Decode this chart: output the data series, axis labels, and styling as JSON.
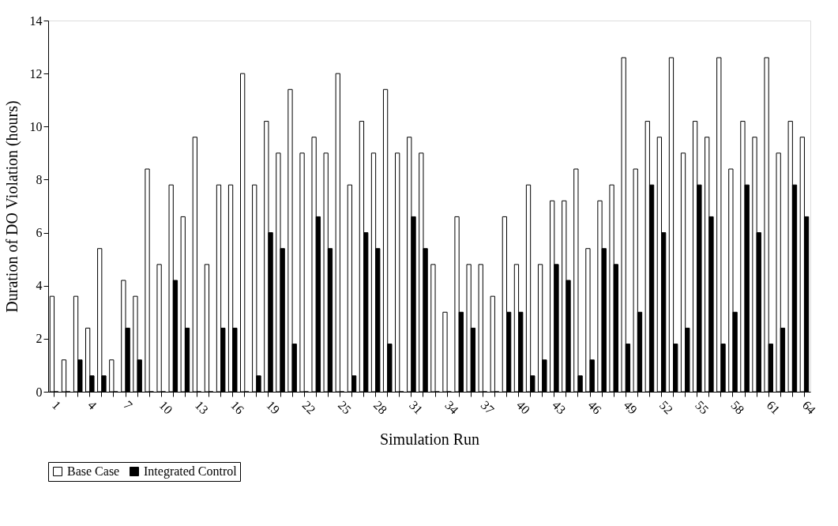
{
  "chart_data": {
    "type": "bar",
    "xlabel": "Simulation Run",
    "ylabel": "Duration of DO Violation (hours)",
    "categories": [
      "1",
      null,
      null,
      "4",
      null,
      null,
      "7",
      null,
      null,
      "10",
      null,
      null,
      "13",
      null,
      null,
      "16",
      null,
      null,
      "19",
      null,
      null,
      "22",
      null,
      null,
      "25",
      null,
      null,
      "28",
      null,
      null,
      "31",
      null,
      null,
      "34",
      null,
      null,
      "37",
      null,
      null,
      "40",
      null,
      null,
      "43",
      null,
      null,
      "46",
      null,
      null,
      "49",
      null,
      null,
      "52",
      null,
      null,
      "55",
      null,
      null,
      "58",
      null,
      null,
      "61",
      null,
      null,
      "64"
    ],
    "series": [
      {
        "name": "Base Case",
        "color": "#ffffff",
        "values": [
          3.6,
          1.2,
          3.6,
          2.4,
          5.4,
          1.2,
          4.2,
          3.6,
          8.4,
          4.8,
          7.8,
          6.6,
          9.6,
          4.8,
          7.8,
          7.8,
          12.0,
          7.8,
          10.2,
          9.0,
          11.4,
          9.0,
          9.6,
          9.0,
          12.0,
          7.8,
          10.2,
          9.0,
          11.4,
          9.0,
          9.6,
          9.0,
          4.8,
          3.0,
          6.6,
          4.8,
          4.8,
          3.6,
          6.6,
          4.8,
          7.8,
          4.8,
          7.2,
          7.2,
          8.4,
          5.4,
          7.2,
          7.8,
          12.6,
          8.4,
          10.2,
          9.6,
          12.6,
          9.0,
          10.2,
          9.6,
          12.6,
          8.4,
          10.2,
          9.6,
          12.6,
          9.0,
          10.2,
          9.6
        ]
      },
      {
        "name": "Integrated Control",
        "color": "#000000",
        "values": [
          0,
          0,
          1.2,
          0.6,
          0.6,
          0,
          2.4,
          1.2,
          0,
          0,
          4.2,
          2.4,
          0,
          0,
          2.4,
          2.4,
          0,
          0.6,
          6.0,
          5.4,
          1.8,
          0,
          6.6,
          5.4,
          0,
          0.6,
          6.0,
          5.4,
          1.8,
          0,
          6.6,
          5.4,
          0,
          0,
          3.0,
          2.4,
          0,
          0,
          3.0,
          3.0,
          0.6,
          1.2,
          4.8,
          4.2,
          0.6,
          1.2,
          5.4,
          4.8,
          1.8,
          3.0,
          7.8,
          6.0,
          1.8,
          2.4,
          7.8,
          6.6,
          1.8,
          3.0,
          7.8,
          6.0,
          1.8,
          2.4,
          7.8,
          6.6
        ]
      }
    ],
    "ylim": [
      0,
      14
    ],
    "yticks": [
      0,
      2,
      4,
      6,
      8,
      10,
      12,
      14
    ],
    "grid": false,
    "legend": "bottom"
  }
}
